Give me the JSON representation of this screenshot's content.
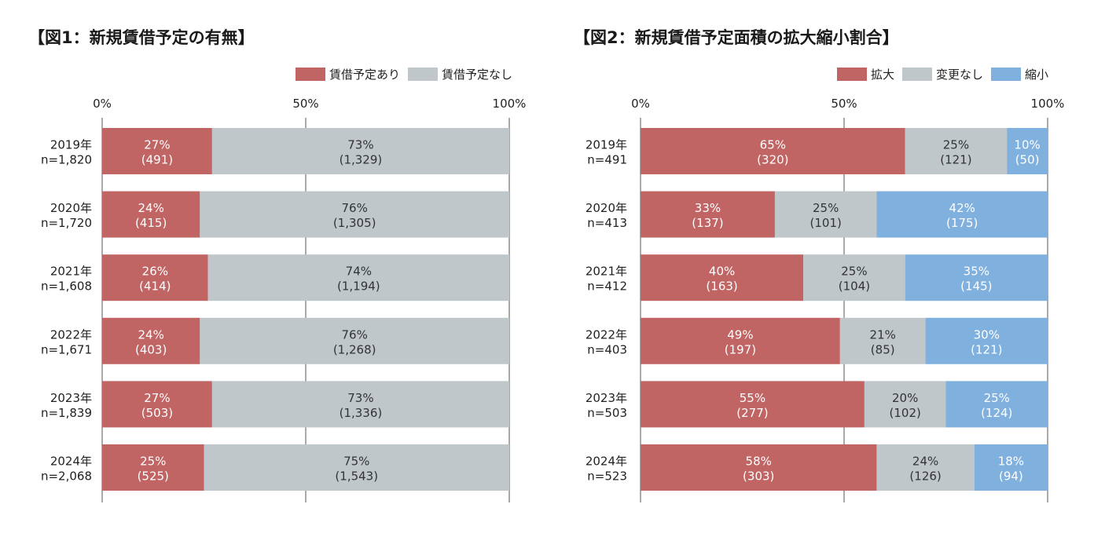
{
  "chart_data": [
    {
      "type": "bar",
      "orientation": "horizontal",
      "stacked": "percent",
      "title": "【図1：新規賃借予定の有無】",
      "legend_position": "top-right",
      "xlim": [
        0,
        100
      ],
      "x_ticks": [
        "0%",
        "50%",
        "100%"
      ],
      "grid": true,
      "categories": [
        "2019年",
        "2020年",
        "2021年",
        "2022年",
        "2023年",
        "2024年"
      ],
      "category_counts": [
        "n=1,820",
        "n=1,720",
        "n=1,608",
        "n=1,671",
        "n=1,839",
        "n=2,068"
      ],
      "series": [
        {
          "name": "賃借予定あり",
          "color": "#C06464",
          "values": [
            27,
            24,
            26,
            24,
            27,
            25
          ],
          "pct_labels": [
            "27%",
            "24%",
            "26%",
            "24%",
            "27%",
            "25%"
          ],
          "count_labels": [
            "(491)",
            "(415)",
            "(414)",
            "(403)",
            "(503)",
            "(525)"
          ]
        },
        {
          "name": "賃借予定なし",
          "color": "#BFC7CB",
          "values": [
            73,
            76,
            74,
            76,
            73,
            75
          ],
          "pct_labels": [
            "73%",
            "76%",
            "74%",
            "76%",
            "73%",
            "75%"
          ],
          "count_labels": [
            "(1,329)",
            "(1,305)",
            "(1,194)",
            "(1,268)",
            "(1,336)",
            "(1,543)"
          ]
        }
      ]
    },
    {
      "type": "bar",
      "orientation": "horizontal",
      "stacked": "percent",
      "title": "【図2：新規賃借予定面積の拡大縮小割合】",
      "legend_position": "top-right",
      "xlim": [
        0,
        100
      ],
      "x_ticks": [
        "0%",
        "50%",
        "100%"
      ],
      "grid": true,
      "categories": [
        "2019年",
        "2020年",
        "2021年",
        "2022年",
        "2023年",
        "2024年"
      ],
      "category_counts": [
        "n=491",
        "n=413",
        "n=412",
        "n=403",
        "n=503",
        "n=523"
      ],
      "series": [
        {
          "name": "拡大",
          "color": "#C06464",
          "values": [
            65,
            33,
            40,
            49,
            55,
            58
          ],
          "pct_labels": [
            "65%",
            "33%",
            "40%",
            "49%",
            "55%",
            "58%"
          ],
          "count_labels": [
            "(320)",
            "(137)",
            "(163)",
            "(197)",
            "(277)",
            "(303)"
          ]
        },
        {
          "name": "変更なし",
          "color": "#BFC7CB",
          "values": [
            25,
            25,
            25,
            21,
            20,
            24
          ],
          "pct_labels": [
            "25%",
            "25%",
            "25%",
            "21%",
            "20%",
            "24%"
          ],
          "count_labels": [
            "(121)",
            "(101)",
            "(104)",
            "(85)",
            "(102)",
            "(126)"
          ]
        },
        {
          "name": "縮小",
          "color": "#7FB0DE",
          "values": [
            10,
            42,
            35,
            30,
            25,
            18
          ],
          "pct_labels": [
            "10%",
            "42%",
            "35%",
            "30%",
            "25%",
            "18%"
          ],
          "count_labels": [
            "(50)",
            "(175)",
            "(145)",
            "(121)",
            "(124)",
            "(94)"
          ]
        }
      ]
    }
  ]
}
